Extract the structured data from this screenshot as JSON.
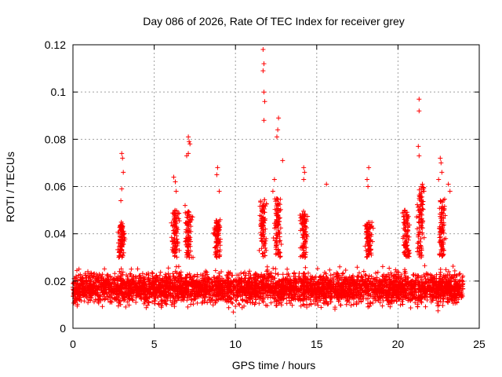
{
  "chart_data": {
    "type": "scatter",
    "title": "Day 086 of 2026, Rate Of TEC Index for receiver grey",
    "xlabel": "GPS time / hours",
    "ylabel": "ROTI / TECUs",
    "xlim": [
      0,
      25
    ],
    "ylim": [
      0,
      0.12
    ],
    "x_ticks": [
      0,
      5,
      10,
      15,
      20,
      25
    ],
    "x_tick_labels": [
      "0",
      "5",
      "10",
      "15",
      "20",
      "25"
    ],
    "y_ticks": [
      0,
      0.02,
      0.04,
      0.06,
      0.08,
      0.1,
      0.12
    ],
    "y_tick_labels": [
      "0",
      "0.02",
      "0.04",
      "0.06",
      "0.08",
      "0.1",
      "0.12"
    ],
    "grid": true,
    "marker": "+",
    "series_color": "#ff0000",
    "notable_points": [
      {
        "x": 3.0,
        "y": 0.074
      },
      {
        "x": 3.05,
        "y": 0.072
      },
      {
        "x": 3.1,
        "y": 0.066
      },
      {
        "x": 3.0,
        "y": 0.059
      },
      {
        "x": 2.95,
        "y": 0.054
      },
      {
        "x": 6.2,
        "y": 0.064
      },
      {
        "x": 6.3,
        "y": 0.062
      },
      {
        "x": 6.35,
        "y": 0.058
      },
      {
        "x": 7.1,
        "y": 0.081
      },
      {
        "x": 7.15,
        "y": 0.079
      },
      {
        "x": 7.2,
        "y": 0.078
      },
      {
        "x": 7.1,
        "y": 0.074
      },
      {
        "x": 7.0,
        "y": 0.073
      },
      {
        "x": 6.9,
        "y": 0.052
      },
      {
        "x": 8.9,
        "y": 0.068
      },
      {
        "x": 8.85,
        "y": 0.065
      },
      {
        "x": 9.0,
        "y": 0.058
      },
      {
        "x": 11.7,
        "y": 0.118
      },
      {
        "x": 11.75,
        "y": 0.112
      },
      {
        "x": 11.7,
        "y": 0.109
      },
      {
        "x": 11.75,
        "y": 0.1
      },
      {
        "x": 11.8,
        "y": 0.096
      },
      {
        "x": 11.75,
        "y": 0.088
      },
      {
        "x": 12.65,
        "y": 0.089
      },
      {
        "x": 12.6,
        "y": 0.084
      },
      {
        "x": 12.55,
        "y": 0.081
      },
      {
        "x": 12.9,
        "y": 0.071
      },
      {
        "x": 12.4,
        "y": 0.063
      },
      {
        "x": 12.3,
        "y": 0.058
      },
      {
        "x": 14.2,
        "y": 0.068
      },
      {
        "x": 14.25,
        "y": 0.066
      },
      {
        "x": 14.2,
        "y": 0.063
      },
      {
        "x": 15.6,
        "y": 0.061
      },
      {
        "x": 18.2,
        "y": 0.068
      },
      {
        "x": 18.1,
        "y": 0.063
      },
      {
        "x": 18.15,
        "y": 0.06
      },
      {
        "x": 21.3,
        "y": 0.097
      },
      {
        "x": 21.3,
        "y": 0.092
      },
      {
        "x": 21.25,
        "y": 0.077
      },
      {
        "x": 21.3,
        "y": 0.073
      },
      {
        "x": 21.5,
        "y": 0.061
      },
      {
        "x": 21.6,
        "y": 0.058
      },
      {
        "x": 22.6,
        "y": 0.072
      },
      {
        "x": 22.65,
        "y": 0.07
      },
      {
        "x": 22.7,
        "y": 0.066
      },
      {
        "x": 22.5,
        "y": 0.063
      },
      {
        "x": 23.1,
        "y": 0.061
      },
      {
        "x": 23.2,
        "y": 0.058
      }
    ],
    "background_band": {
      "x_range": [
        0,
        24
      ],
      "typical_y_range": [
        0.005,
        0.035
      ],
      "median_y": 0.017
    },
    "activity_bursts": [
      {
        "center_x": 3.0,
        "peak_y": 0.045
      },
      {
        "center_x": 6.3,
        "peak_y": 0.05
      },
      {
        "center_x": 7.1,
        "peak_y": 0.05
      },
      {
        "center_x": 8.9,
        "peak_y": 0.046
      },
      {
        "center_x": 11.7,
        "peak_y": 0.055
      },
      {
        "center_x": 12.6,
        "peak_y": 0.055
      },
      {
        "center_x": 14.2,
        "peak_y": 0.05
      },
      {
        "center_x": 18.2,
        "peak_y": 0.045
      },
      {
        "center_x": 20.5,
        "peak_y": 0.05
      },
      {
        "center_x": 21.4,
        "peak_y": 0.06
      },
      {
        "center_x": 22.7,
        "peak_y": 0.055
      }
    ]
  }
}
